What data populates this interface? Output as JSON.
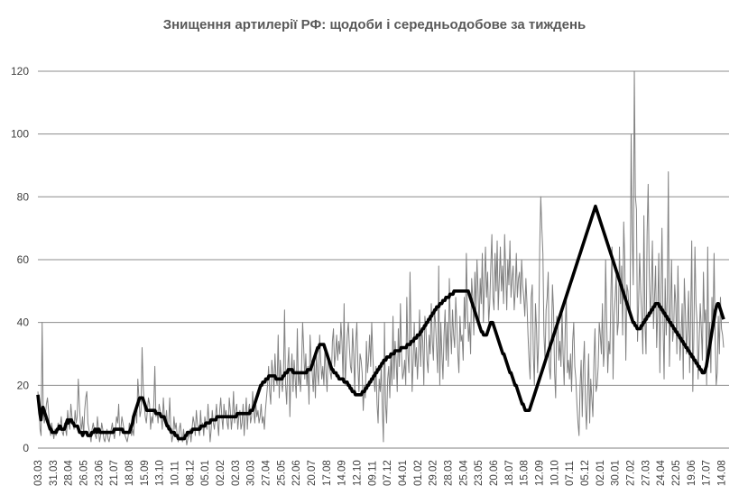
{
  "chart_data": {
    "type": "line",
    "title": "Знищення артилерії РФ: щодоби і середньодобове за тиждень",
    "xlabel": "",
    "ylabel": "",
    "ylim": [
      0,
      122
    ],
    "yticks": [
      0,
      20,
      40,
      60,
      80,
      100,
      120
    ],
    "x_tick_labels": [
      "03.03",
      "31.03",
      "28.04",
      "26.05",
      "23.06",
      "21.07",
      "18.08",
      "15.09",
      "13.10",
      "10.11",
      "08.12",
      "05.01",
      "02.02",
      "02.03",
      "30.03",
      "27.04",
      "25.05",
      "22.06",
      "20.07",
      "17.08",
      "14.09",
      "12.10",
      "09.11",
      "07.12",
      "04.01",
      "01.02",
      "29.02",
      "28.03",
      "25.04",
      "23.05",
      "20.06",
      "18.07",
      "15.08",
      "12.09",
      "10.10",
      "07.11",
      "05.12",
      "02.01",
      "30.01",
      "27.02",
      "27.03",
      "24.04",
      "22.05",
      "19.06",
      "17.07",
      "14.08"
    ],
    "grid": true,
    "legend": "none",
    "series": [
      {
        "style": "thin-gray",
        "color": "#808080",
        "values": [
          18,
          14,
          6,
          4,
          40,
          12,
          8,
          10,
          14,
          16,
          12,
          6,
          4,
          8,
          5,
          3,
          6,
          4,
          5,
          8,
          6,
          7,
          10,
          5,
          4,
          8,
          6,
          4,
          12,
          8,
          6,
          14,
          10,
          8,
          6,
          12,
          8,
          10,
          22,
          14,
          8,
          6,
          10,
          4,
          12,
          16,
          18,
          8,
          6,
          4,
          2,
          6,
          8,
          6,
          4,
          3,
          10,
          6,
          2,
          4,
          8,
          6,
          3,
          2,
          4,
          6,
          3,
          2,
          4,
          6,
          8,
          5,
          3,
          6,
          10,
          8,
          14,
          4,
          6,
          10,
          8,
          6,
          4,
          3,
          2,
          4,
          8,
          6,
          4,
          6,
          4,
          10,
          12,
          8,
          22,
          16,
          10,
          12,
          32,
          20,
          14,
          10,
          8,
          12,
          16,
          14,
          6,
          10,
          8,
          14,
          26,
          10,
          12,
          8,
          14,
          12,
          10,
          6,
          16,
          10,
          8,
          12,
          6,
          8,
          16,
          6,
          2,
          4,
          10,
          6,
          8,
          4,
          2,
          6,
          8,
          4,
          2,
          6,
          3,
          4,
          1,
          3,
          4,
          6,
          2,
          6,
          10,
          8,
          4,
          12,
          8,
          6,
          4,
          12,
          6,
          8,
          4,
          10,
          8,
          6,
          14,
          8,
          2,
          6,
          12,
          8,
          6,
          10,
          14,
          8,
          4,
          12,
          16,
          10,
          6,
          14,
          10,
          12,
          8,
          6,
          16,
          12,
          6,
          10,
          18,
          8,
          12,
          14,
          6,
          10,
          12,
          6,
          8,
          14,
          4,
          10,
          16,
          6,
          12,
          14,
          8,
          10,
          18,
          12,
          8,
          14,
          10,
          12,
          8,
          10,
          14,
          8,
          10,
          6,
          12,
          16,
          20,
          26,
          18,
          14,
          28,
          24,
          18,
          30,
          22,
          20,
          36,
          16,
          28,
          22,
          18,
          24,
          44,
          20,
          14,
          26,
          32,
          10,
          24,
          30,
          18,
          28,
          22,
          16,
          38,
          20,
          24,
          18,
          26,
          40,
          32,
          22,
          30,
          20,
          26,
          14,
          36,
          28,
          24,
          18,
          28,
          16,
          30,
          24,
          20,
          36,
          28,
          22,
          26,
          20,
          32,
          24,
          18,
          30,
          26,
          24,
          22,
          34,
          38,
          26,
          30,
          36,
          28,
          34,
          30,
          40,
          34,
          22,
          46,
          20,
          28,
          36,
          40,
          32,
          26,
          24,
          38,
          30,
          18,
          34,
          40,
          26,
          18,
          30,
          28,
          24,
          12,
          20,
          16,
          34,
          24,
          28,
          36,
          26,
          40,
          30,
          22,
          18,
          26,
          14,
          8,
          22,
          18,
          26,
          12,
          2,
          40,
          14,
          8,
          22,
          26,
          16,
          30,
          20,
          42,
          22,
          34,
          28,
          18,
          38,
          26,
          46,
          30,
          22,
          24,
          28,
          20,
          48,
          30,
          24,
          56,
          36,
          18,
          28,
          40,
          26,
          32,
          22,
          30,
          44,
          26,
          38,
          34,
          20,
          42,
          38,
          28,
          24,
          36,
          30,
          46,
          34,
          28,
          44,
          40,
          32,
          24,
          58,
          20,
          40,
          30,
          22,
          36,
          44,
          28,
          40,
          26,
          54,
          38,
          30,
          44,
          36,
          32,
          48,
          40,
          30,
          24,
          42,
          34,
          36,
          28,
          48,
          38,
          62,
          44,
          34,
          40,
          30,
          54,
          48,
          36,
          56,
          44,
          60,
          50,
          38,
          54,
          46,
          62,
          40,
          52,
          64,
          48,
          56,
          40,
          46,
          58,
          68,
          48,
          44,
          62,
          50,
          66,
          44,
          54,
          64,
          50,
          58,
          46,
          68,
          56,
          44,
          60,
          52,
          66,
          48,
          54,
          58,
          44,
          50,
          62,
          48,
          54,
          56,
          46,
          60,
          52,
          48,
          42,
          54,
          46,
          36,
          28,
          22,
          48,
          52,
          30,
          20,
          46,
          38,
          24,
          34,
          64,
          80,
          70,
          62,
          36,
          28,
          44,
          48,
          56,
          26,
          22,
          34,
          52,
          44,
          24,
          16,
          42,
          40,
          28,
          34,
          26,
          44,
          30,
          20,
          38,
          48,
          24,
          28,
          22,
          30,
          18,
          34,
          40,
          26,
          22,
          14,
          8,
          4,
          20,
          28,
          10,
          26,
          34,
          14,
          6,
          18,
          30,
          8,
          22,
          16,
          10,
          28,
          38,
          18,
          20,
          26,
          40,
          36,
          30,
          46,
          26,
          32,
          60,
          40,
          24,
          34,
          30,
          50,
          64,
          22,
          42,
          48,
          56,
          36,
          40,
          64,
          46,
          58,
          36,
          72,
          60,
          28,
          52,
          50,
          44,
          42,
          100,
          68,
          52,
          120,
          80,
          76,
          34,
          46,
          62,
          50,
          42,
          30,
          74,
          40,
          30,
          68,
          84,
          56,
          42,
          50,
          66,
          38,
          48,
          58,
          32,
          44,
          62,
          24,
          48,
          70,
          40,
          22,
          54,
          36,
          48,
          88,
          26,
          44,
          60,
          34,
          38,
          52,
          46,
          30,
          58,
          40,
          28,
          36,
          46,
          22,
          54,
          44,
          30,
          38,
          50,
          24,
          42,
          66,
          18,
          36,
          64,
          46,
          40,
          22,
          34,
          46,
          38,
          28,
          56,
          40,
          44,
          20,
          64,
          30,
          40,
          24,
          48,
          38,
          62,
          36,
          20,
          24,
          42,
          30,
          48,
          38,
          36,
          32
        ]
      },
      {
        "style": "bold-black",
        "color": "#000000",
        "values": [
          17,
          14,
          11,
          9,
          12,
          13,
          12,
          11,
          10,
          9,
          8,
          7,
          6,
          6,
          5,
          5,
          5,
          5,
          5,
          6,
          6,
          7,
          7,
          6,
          6,
          6,
          6,
          7,
          8,
          9,
          8,
          9,
          9,
          9,
          8,
          8,
          7,
          7,
          7,
          7,
          6,
          5,
          5,
          5,
          4,
          5,
          5,
          5,
          5,
          4,
          4,
          4,
          4,
          5,
          5,
          5,
          6,
          6,
          5,
          6,
          6,
          5,
          5,
          5,
          5,
          5,
          5,
          5,
          5,
          5,
          5,
          5,
          5,
          5,
          5,
          6,
          6,
          6,
          6,
          6,
          6,
          6,
          6,
          6,
          5,
          5,
          5,
          5,
          5,
          5,
          5,
          6,
          7,
          8,
          10,
          11,
          12,
          13,
          14,
          15,
          16,
          16,
          16,
          16,
          15,
          14,
          13,
          12,
          12,
          12,
          12,
          12,
          12,
          12,
          12,
          12,
          11,
          11,
          11,
          11,
          11,
          10,
          10,
          10,
          10,
          9,
          8,
          7,
          7,
          6,
          6,
          5,
          5,
          5,
          5,
          4,
          4,
          4,
          3,
          3,
          3,
          3,
          3,
          3,
          3,
          4,
          4,
          5,
          5,
          5,
          5,
          5,
          6,
          6,
          6,
          6,
          6,
          6,
          6,
          6,
          7,
          7,
          7,
          7,
          7,
          8,
          8,
          8,
          8,
          8,
          9,
          9,
          9,
          9,
          9,
          9,
          10,
          10,
          10,
          10,
          10,
          10,
          10,
          10,
          10,
          10,
          10,
          10,
          10,
          10,
          10,
          10,
          10,
          10,
          10,
          10,
          11,
          11,
          11,
          11,
          11,
          11,
          11,
          11,
          11,
          11,
          11,
          11,
          11,
          12,
          12,
          12,
          13,
          14,
          15,
          16,
          17,
          18,
          19,
          20,
          20,
          21,
          21,
          21,
          22,
          22,
          22,
          23,
          23,
          23,
          23,
          23,
          23,
          23,
          22,
          22,
          22,
          22,
          22,
          22,
          22,
          23,
          23,
          24,
          24,
          24,
          25,
          25,
          25,
          25,
          25,
          24,
          24,
          24,
          24,
          24,
          24,
          24,
          24,
          24,
          24,
          24,
          24,
          24,
          24,
          25,
          25,
          25,
          25,
          26,
          27,
          28,
          29,
          30,
          31,
          32,
          32,
          33,
          33,
          33,
          33,
          33,
          32,
          31,
          30,
          29,
          28,
          27,
          26,
          25,
          25,
          24,
          24,
          24,
          23,
          23,
          22,
          22,
          22,
          22,
          22,
          21,
          21,
          21,
          21,
          20,
          20,
          19,
          19,
          18,
          18,
          18,
          17,
          17,
          17,
          17,
          17,
          17,
          17,
          18,
          18,
          18,
          19,
          19,
          20,
          20,
          21,
          21,
          22,
          22,
          23,
          23,
          24,
          24,
          25,
          25,
          26,
          26,
          27,
          27,
          28,
          28,
          28,
          29,
          29,
          29,
          29,
          30,
          30,
          30,
          30,
          31,
          31,
          31,
          31,
          31,
          31,
          32,
          32,
          32,
          32,
          32,
          32,
          33,
          33,
          33,
          33,
          34,
          34,
          34,
          35,
          35,
          35,
          36,
          36,
          36,
          37,
          37,
          38,
          38,
          39,
          39,
          40,
          40,
          41,
          41,
          42,
          42,
          43,
          43,
          44,
          44,
          45,
          45,
          45,
          46,
          46,
          46,
          47,
          47,
          47,
          48,
          48,
          48,
          48,
          49,
          49,
          49,
          49,
          50,
          50,
          50,
          50,
          50,
          50,
          50,
          50,
          50,
          50,
          50,
          50,
          50,
          50,
          50,
          49,
          48,
          47,
          46,
          45,
          44,
          43,
          42,
          41,
          40,
          39,
          38,
          37,
          37,
          36,
          36,
          36,
          36,
          37,
          38,
          39,
          40,
          40,
          40,
          39,
          38,
          37,
          36,
          35,
          34,
          33,
          32,
          31,
          30,
          30,
          29,
          28,
          27,
          26,
          25,
          24,
          24,
          23,
          22,
          21,
          20,
          20,
          19,
          18,
          17,
          16,
          15,
          14,
          14,
          13,
          12,
          12,
          12,
          12,
          12,
          13,
          14,
          15,
          16,
          17,
          18,
          19,
          20,
          21,
          22,
          23,
          24,
          25,
          26,
          27,
          28,
          29,
          30,
          31,
          32,
          33,
          34,
          35,
          36,
          37,
          38,
          39,
          40,
          41,
          42,
          43,
          44,
          45,
          46,
          47,
          48,
          49,
          50,
          51,
          52,
          53,
          54,
          55,
          56,
          57,
          58,
          59,
          60,
          61,
          62,
          63,
          64,
          65,
          66,
          67,
          68,
          69,
          70,
          71,
          72,
          73,
          74,
          75,
          76,
          77,
          76,
          75,
          74,
          73,
          72,
          71,
          70,
          69,
          68,
          67,
          66,
          65,
          64,
          63,
          62,
          61,
          60,
          59,
          58,
          57,
          56,
          55,
          54,
          53,
          52,
          51,
          50,
          49,
          48,
          47,
          46,
          45,
          44,
          43,
          42,
          41,
          40,
          40,
          39,
          39,
          38,
          38,
          38,
          38,
          39,
          39,
          40,
          40,
          41,
          41,
          42,
          42,
          43,
          43,
          44,
          44,
          45,
          45,
          46,
          46,
          46,
          46,
          45,
          45,
          44,
          44,
          43,
          43,
          42,
          42,
          41,
          41,
          40,
          40,
          39,
          39,
          38,
          38,
          37,
          37,
          36,
          36,
          35,
          35,
          34,
          34,
          33,
          33,
          32,
          32,
          31,
          31,
          30,
          30,
          29,
          29,
          28,
          28,
          27,
          27,
          26,
          26,
          25,
          25,
          24,
          24,
          24,
          25,
          26,
          28,
          30,
          32,
          34,
          36,
          38,
          40,
          42,
          44,
          45,
          46,
          46,
          45,
          44,
          43,
          42,
          41
        ]
      }
    ]
  }
}
